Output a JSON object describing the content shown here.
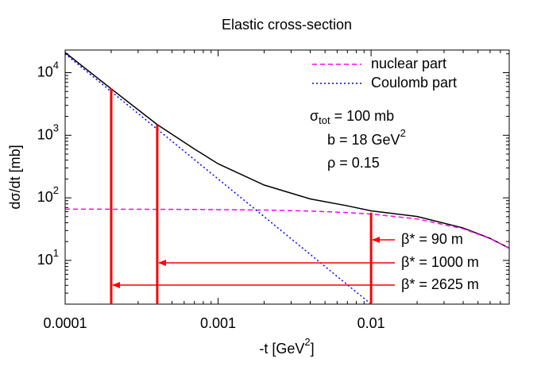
{
  "chart_data": {
    "type": "line",
    "title": "Elastic cross-section",
    "x_label": {
      "text": "-t [GeV",
      "superscript": "2",
      "suffix": "]"
    },
    "y_label": "dσ/dt [mb]",
    "x_scale": "log",
    "y_scale": "log",
    "xlim": [
      0.0001,
      0.08
    ],
    "ylim": [
      2,
      23000
    ],
    "xticks": [
      0.0001,
      0.001,
      0.01
    ],
    "xminorticks": [
      0.0002,
      0.0003,
      0.0004,
      0.0005,
      0.0006,
      0.0007,
      0.0008,
      0.0009,
      0.002,
      0.003,
      0.004,
      0.005,
      0.006,
      0.007,
      0.008,
      0.009,
      0.02,
      0.03,
      0.04,
      0.05,
      0.06,
      0.07
    ],
    "yticks": [
      {
        "value": 10,
        "label": "10",
        "exponent": "1"
      },
      {
        "value": 100,
        "label": "10",
        "exponent": "2"
      },
      {
        "value": 1000,
        "label": "10",
        "exponent": "3"
      },
      {
        "value": 10000,
        "label": "10",
        "exponent": "4"
      }
    ],
    "yminorticks": [
      2,
      3,
      4,
      5,
      6,
      7,
      8,
      9,
      20,
      30,
      40,
      50,
      60,
      70,
      80,
      90,
      200,
      300,
      400,
      500,
      600,
      700,
      800,
      900,
      2000,
      3000,
      4000,
      5000,
      6000,
      7000,
      8000,
      9000,
      20000
    ],
    "legend": "top right",
    "x": [
      0.0001,
      0.0002,
      0.0004,
      0.0007,
      0.001,
      0.002,
      0.004,
      0.007,
      0.01,
      0.02,
      0.04,
      0.06,
      0.08
    ],
    "series": [
      {
        "color": "#000000",
        "dash": "solid",
        "values": [
          21000,
          5520,
          1480,
          603,
          350,
          160,
          96,
          74.5,
          62,
          50.3,
          33,
          22.5,
          15.7
        ]
      },
      {
        "name": "nuclear part",
        "color": "#ff00ff",
        "dash": "dashed",
        "values": [
          65.9,
          65.8,
          65.5,
          65.2,
          64.8,
          63.7,
          61.4,
          58.1,
          55.1,
          46.0,
          32.0,
          22.3,
          15.6
        ]
      },
      {
        "name": "Coulomb part",
        "color": "#0000ff",
        "dash": "dotted",
        "values": [
          20000,
          5000,
          1250,
          408,
          200,
          50,
          12.5,
          4.08,
          2,
          null,
          null,
          null,
          null
        ]
      }
    ],
    "parameters": [
      {
        "symbol": "σ",
        "subscript": "tot",
        "text": " = 100 mb"
      },
      {
        "text": "b = 18 GeV",
        "superscript": "2"
      },
      {
        "text": "ρ = 0.15"
      }
    ],
    "markers": {
      "color": "#ff0000",
      "items": [
        {
          "t": 0.01,
          "top": 58,
          "label": "β* = 90 m"
        },
        {
          "t": 0.0004,
          "top": 1460,
          "label": "β* = 1000 m"
        },
        {
          "t": 0.0002,
          "top": 5580,
          "label": "β* = 2625 m"
        }
      ]
    }
  }
}
